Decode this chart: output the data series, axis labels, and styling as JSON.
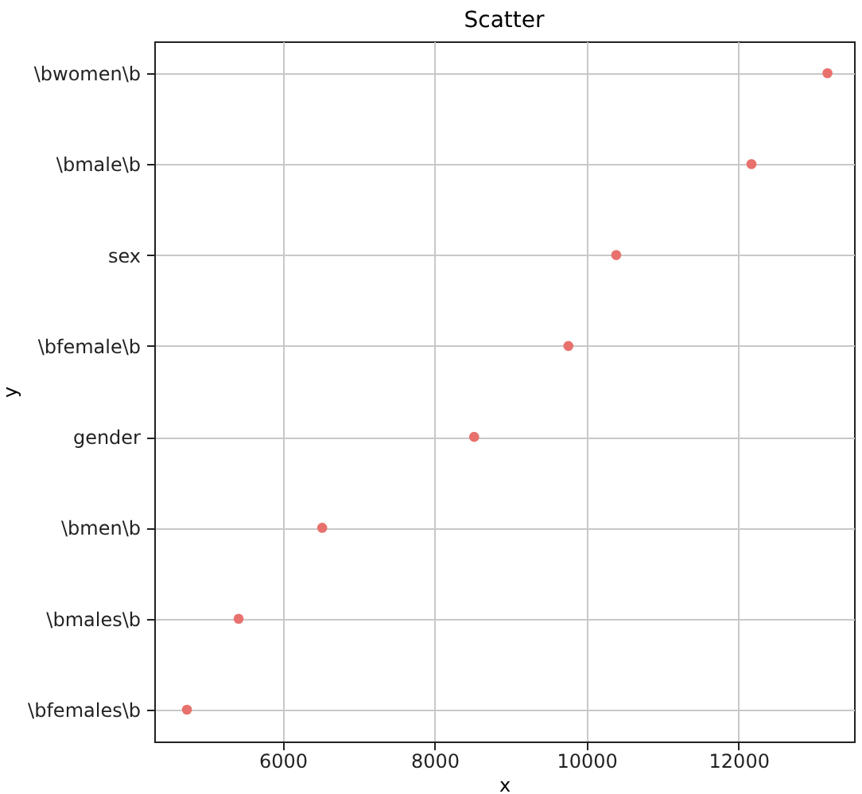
{
  "chart_data": {
    "type": "scatter",
    "title": "Scatter",
    "xlabel": "x",
    "ylabel": "y",
    "orientation": "horizontal",
    "categories": [
      "\\bwomen\\b",
      "\\bmale\\b",
      "sex",
      "\\bfemale\\b",
      "gender",
      "\\bmen\\b",
      "\\bmales\\b",
      "\\bfemales\\b"
    ],
    "values": [
      13170,
      12170,
      10390,
      9760,
      8520,
      6520,
      5420,
      4740
    ],
    "color": "#e8716d",
    "xlim": [
      4310,
      13520
    ],
    "xticks": [
      6000,
      8000,
      10000,
      12000
    ],
    "grid": true,
    "marker": "circle"
  }
}
